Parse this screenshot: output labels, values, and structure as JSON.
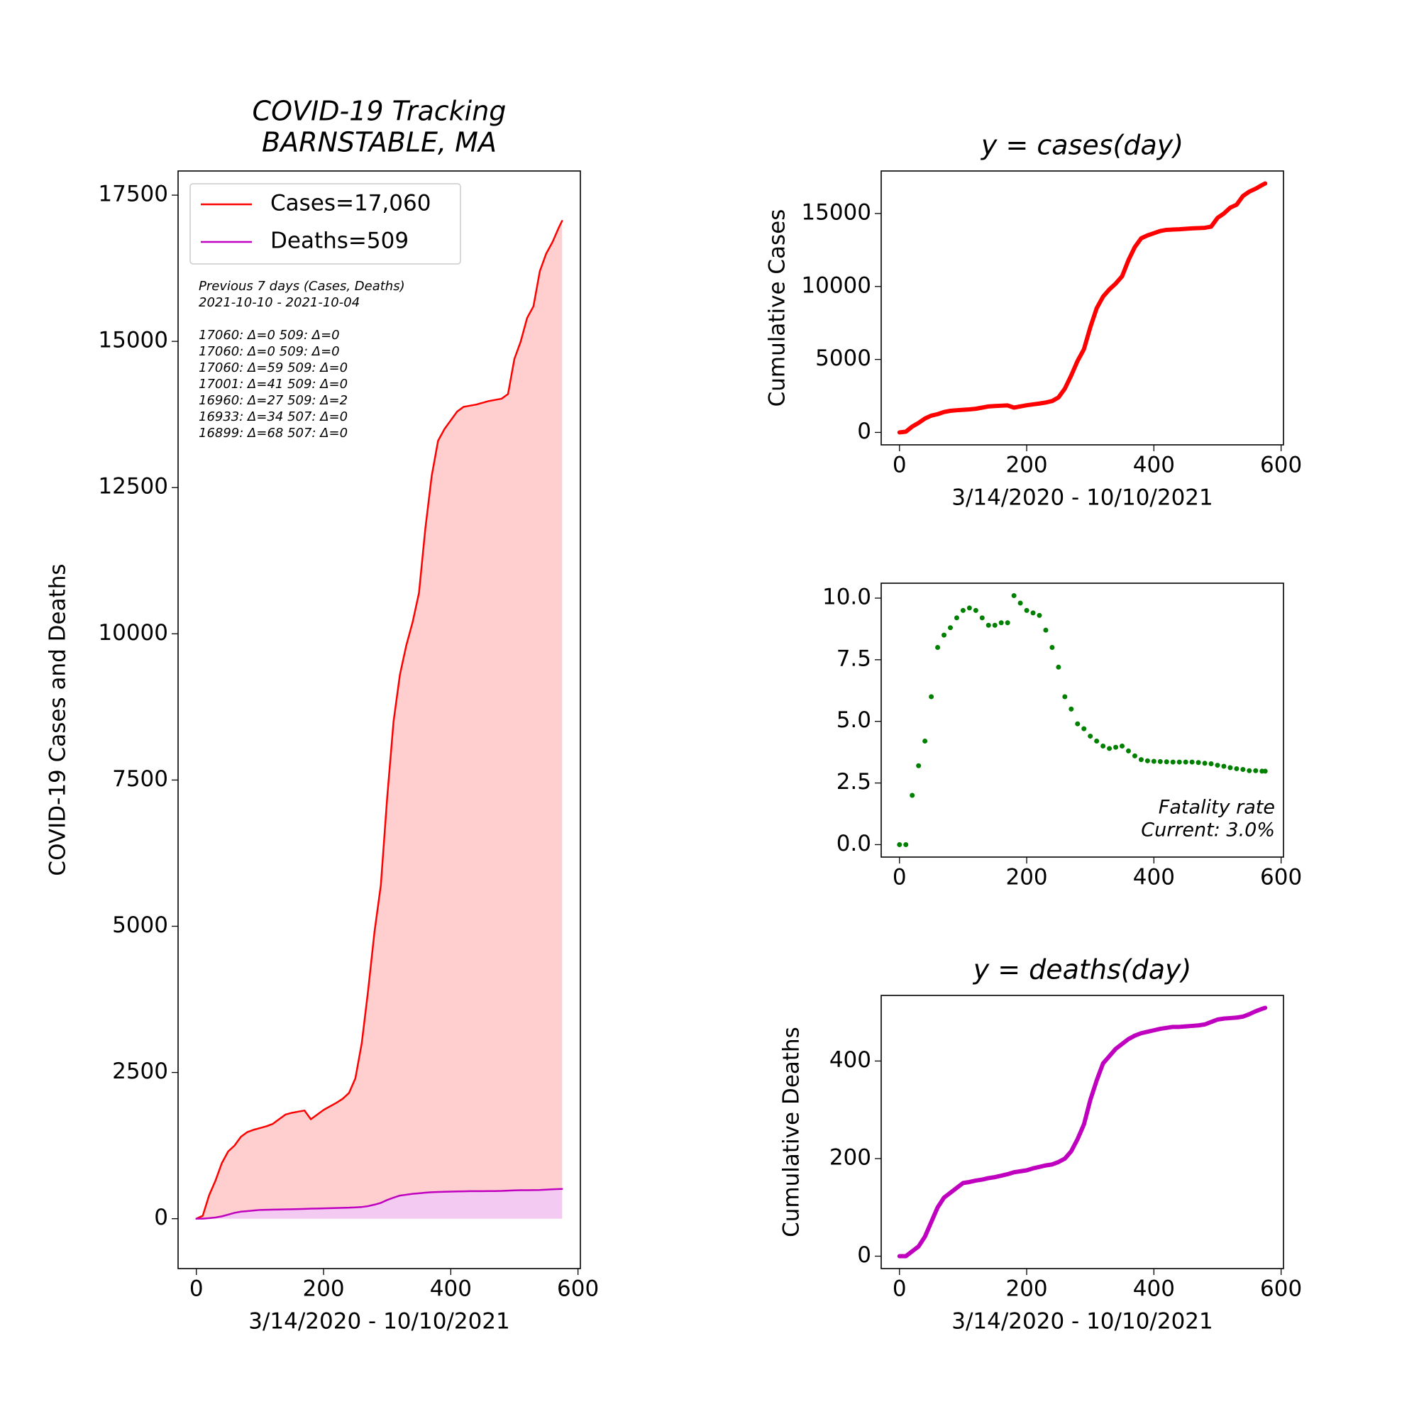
{
  "chart_data": [
    {
      "type": "area",
      "title": [
        "COVID-19 Tracking",
        "BARNSTABLE, MA"
      ],
      "xlabel": "3/14/2020 - 10/10/2021",
      "ylabel": "COVID-19 Cases and Deaths",
      "annotations": [
        "Previous 7 days (Cases, Deaths)",
        "2021-10-10 - 2021-10-04",
        "17060: Δ=0 509: Δ=0",
        "17060: Δ=0 509: Δ=0",
        "17060: Δ=59 509: Δ=0",
        "17001: Δ=41 509: Δ=0",
        "16960: Δ=27 509: Δ=2",
        "16933: Δ=34 507: Δ=0",
        "16899: Δ=68 507: Δ=0"
      ],
      "legend": "upper left",
      "x": [
        0,
        10,
        20,
        30,
        40,
        50,
        60,
        70,
        80,
        90,
        100,
        110,
        120,
        130,
        140,
        150,
        160,
        170,
        180,
        190,
        200,
        210,
        220,
        230,
        240,
        250,
        260,
        270,
        280,
        290,
        300,
        310,
        320,
        330,
        340,
        350,
        360,
        370,
        380,
        390,
        400,
        410,
        420,
        430,
        440,
        450,
        460,
        470,
        480,
        490,
        500,
        510,
        520,
        530,
        540,
        550,
        560,
        570,
        575
      ],
      "series": [
        {
          "name": "Cases=17,060",
          "color": "#ff0000",
          "fill": "#ffcccc",
          "values": [
            0,
            50,
            400,
            650,
            950,
            1150,
            1250,
            1400,
            1480,
            1520,
            1550,
            1580,
            1620,
            1700,
            1780,
            1810,
            1830,
            1850,
            1700,
            1780,
            1860,
            1920,
            1980,
            2050,
            2150,
            2400,
            3000,
            3900,
            4900,
            5700,
            7200,
            8500,
            9300,
            9800,
            10200,
            10700,
            11800,
            12700,
            13300,
            13500,
            13650,
            13800,
            13880,
            13900,
            13920,
            13950,
            13980,
            14000,
            14020,
            14100,
            14700,
            15000,
            15400,
            15600,
            16200,
            16500,
            16700,
            16950,
            17060
          ]
        },
        {
          "name": "Deaths=509",
          "color": "#bf00bf",
          "fill": "#f2c9f2",
          "values": [
            0,
            0,
            10,
            20,
            40,
            70,
            100,
            120,
            130,
            140,
            150,
            152,
            155,
            157,
            160,
            162,
            165,
            168,
            172,
            174,
            176,
            180,
            183,
            186,
            188,
            193,
            200,
            215,
            240,
            270,
            320,
            360,
            395,
            410,
            425,
            435,
            445,
            452,
            457,
            460,
            463,
            466,
            468,
            470,
            470,
            471,
            472,
            473,
            475,
            480,
            485,
            487,
            488,
            489,
            491,
            496,
            502,
            507,
            509
          ]
        }
      ],
      "xlim": [
        -28.75,
        603.75
      ],
      "xticks": [
        0,
        200,
        400,
        600
      ],
      "ylim": [
        -853,
        17913
      ],
      "yticks": [
        0,
        2500,
        5000,
        7500,
        10000,
        12500,
        15000,
        17500
      ]
    },
    {
      "type": "line",
      "title": "y = cases(day)",
      "xlabel": "3/14/2020 - 10/10/2021",
      "ylabel": "Cumulative Cases",
      "x": [
        0,
        10,
        20,
        30,
        40,
        50,
        60,
        70,
        80,
        90,
        100,
        110,
        120,
        130,
        140,
        150,
        160,
        170,
        180,
        190,
        200,
        210,
        220,
        230,
        240,
        250,
        260,
        270,
        280,
        290,
        300,
        310,
        320,
        330,
        340,
        350,
        360,
        370,
        380,
        390,
        400,
        410,
        420,
        430,
        440,
        450,
        460,
        470,
        480,
        490,
        500,
        510,
        520,
        530,
        540,
        550,
        560,
        570,
        575
      ],
      "series": [
        {
          "color": "#ff0000",
          "values": [
            0,
            50,
            400,
            650,
            950,
            1150,
            1250,
            1400,
            1480,
            1520,
            1550,
            1580,
            1620,
            1700,
            1780,
            1810,
            1830,
            1850,
            1700,
            1780,
            1860,
            1920,
            1980,
            2050,
            2150,
            2400,
            3000,
            3900,
            4900,
            5700,
            7200,
            8500,
            9300,
            9800,
            10200,
            10700,
            11800,
            12700,
            13300,
            13500,
            13650,
            13800,
            13880,
            13900,
            13920,
            13950,
            13980,
            14000,
            14020,
            14100,
            14700,
            15000,
            15400,
            15600,
            16200,
            16500,
            16700,
            16950,
            17060
          ]
        }
      ],
      "xlim": [
        -28.75,
        603.75
      ],
      "xticks": [
        0,
        200,
        400,
        600
      ],
      "ylim": [
        -853,
        17913
      ],
      "yticks": [
        0,
        5000,
        10000,
        15000
      ]
    },
    {
      "type": "scatter",
      "annotations": [
        "Fatality rate",
        "Current: 3.0%"
      ],
      "x": [
        0,
        10,
        20,
        30,
        40,
        50,
        60,
        70,
        80,
        90,
        100,
        110,
        120,
        130,
        140,
        150,
        160,
        170,
        180,
        190,
        200,
        210,
        220,
        230,
        240,
        250,
        260,
        270,
        280,
        290,
        300,
        310,
        320,
        330,
        340,
        350,
        360,
        370,
        380,
        390,
        400,
        410,
        420,
        430,
        440,
        450,
        460,
        470,
        480,
        490,
        500,
        510,
        520,
        530,
        540,
        550,
        560,
        570,
        575
      ],
      "series": [
        {
          "color": "#008000",
          "values": [
            0,
            0,
            2.0,
            3.2,
            4.2,
            6,
            8,
            8.5,
            8.8,
            9.2,
            9.5,
            9.6,
            9.5,
            9.2,
            8.9,
            8.9,
            9.0,
            9.0,
            10.1,
            9.8,
            9.5,
            9.4,
            9.3,
            8.7,
            8.0,
            7.2,
            6.0,
            5.5,
            4.9,
            4.7,
            4.4,
            4.2,
            4.0,
            3.9,
            3.95,
            4.0,
            3.8,
            3.6,
            3.45,
            3.4,
            3.38,
            3.37,
            3.36,
            3.35,
            3.35,
            3.35,
            3.35,
            3.33,
            3.3,
            3.28,
            3.22,
            3.18,
            3.12,
            3.08,
            3.05,
            3.0,
            3.0,
            2.98,
            2.98
          ]
        }
      ],
      "xlim": [
        -28.75,
        603.75
      ],
      "xticks": [
        0,
        200,
        400,
        600
      ],
      "ylim": [
        -0.505,
        10.605
      ],
      "yticks": [
        {
          "value": 0,
          "label": "0.0"
        },
        {
          "value": 2.5,
          "label": "2.5"
        },
        {
          "value": 5,
          "label": "5.0"
        },
        {
          "value": 7.5,
          "label": "7.5"
        },
        {
          "value": 10,
          "label": "10.0"
        }
      ]
    },
    {
      "type": "line",
      "title": "y = deaths(day)",
      "xlabel": "3/14/2020 - 10/10/2021",
      "ylabel": "Cumulative Deaths",
      "x": [
        0,
        10,
        20,
        30,
        40,
        50,
        60,
        70,
        80,
        90,
        100,
        110,
        120,
        130,
        140,
        150,
        160,
        170,
        180,
        190,
        200,
        210,
        220,
        230,
        240,
        250,
        260,
        270,
        280,
        290,
        300,
        310,
        320,
        330,
        340,
        350,
        360,
        370,
        380,
        390,
        400,
        410,
        420,
        430,
        440,
        450,
        460,
        470,
        480,
        490,
        500,
        510,
        520,
        530,
        540,
        550,
        560,
        570,
        575
      ],
      "series": [
        {
          "color": "#bf00bf",
          "values": [
            0,
            0,
            10,
            20,
            40,
            70,
            100,
            120,
            130,
            140,
            150,
            152,
            155,
            157,
            160,
            162,
            165,
            168,
            172,
            174,
            176,
            180,
            183,
            186,
            188,
            193,
            200,
            215,
            240,
            270,
            320,
            360,
            395,
            410,
            425,
            435,
            445,
            452,
            457,
            460,
            463,
            466,
            468,
            470,
            470,
            471,
            472,
            473,
            475,
            480,
            485,
            487,
            488,
            489,
            491,
            496,
            502,
            507,
            509
          ]
        }
      ],
      "xlim": [
        -28.75,
        603.75
      ],
      "xticks": [
        0,
        200,
        400,
        600
      ],
      "ylim": [
        -25.45,
        534.45
      ],
      "yticks": [
        0,
        200,
        400
      ]
    }
  ]
}
